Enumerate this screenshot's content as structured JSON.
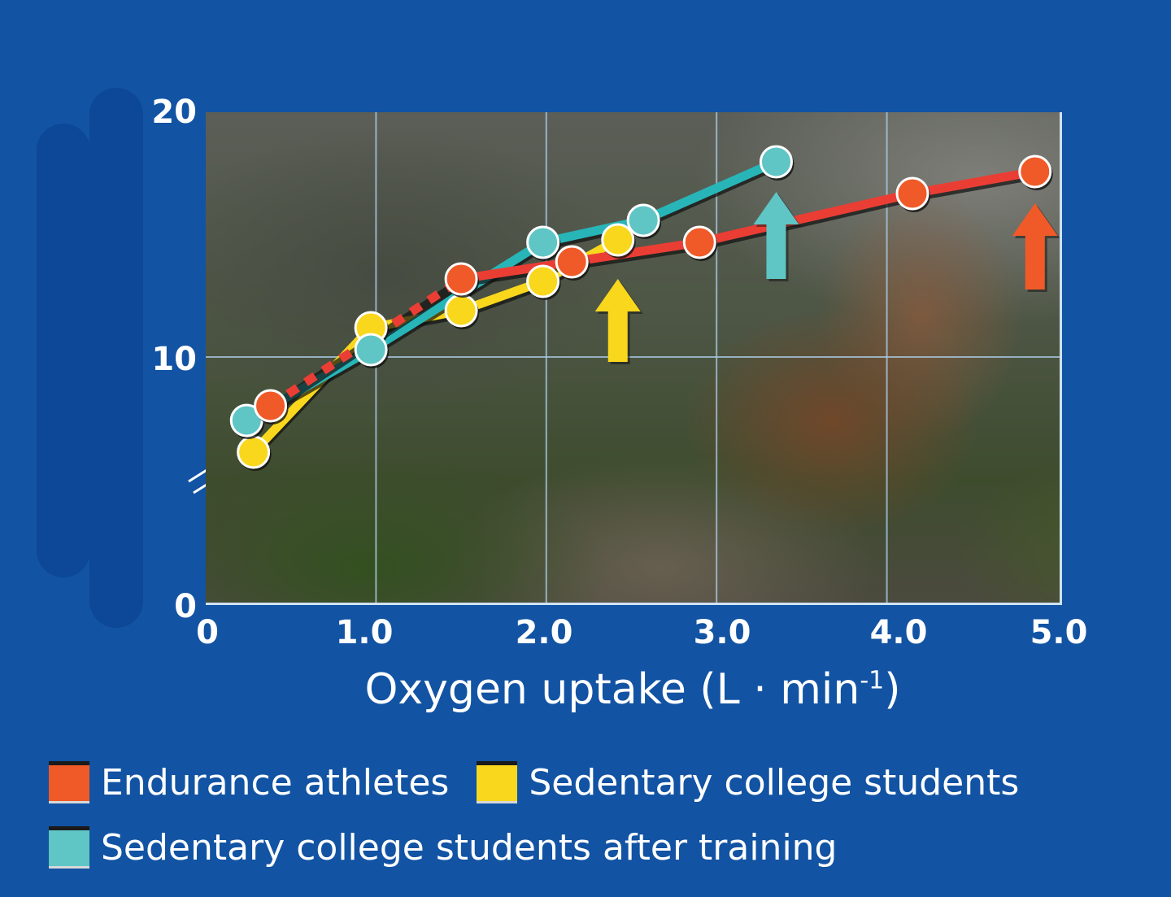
{
  "colors": {
    "background": "#1253a3",
    "endurance": "#f05a28",
    "endurance_line": "#ea3e34",
    "sedentary": "#f9d71c",
    "trained": "#5fc5c5",
    "trained_line": "#28b5b8",
    "grid": "#a9c8e2"
  },
  "axes": {
    "y_ticks": [
      "20",
      "10",
      "0"
    ],
    "x_ticks": [
      "0",
      "1.0",
      "2.0",
      "3.0",
      "4.0",
      "5.0"
    ],
    "x_label_main": "Oxygen uptake (L · min",
    "x_label_sup": "-1",
    "x_label_close": ")"
  },
  "legend": {
    "items": [
      {
        "label": "Endurance athletes",
        "color": "#f05a28"
      },
      {
        "label": "Sedentary college students",
        "color": "#f9d71c"
      },
      {
        "label": "Sedentary college students after training",
        "color": "#5fc5c5"
      }
    ]
  },
  "chart_data": {
    "type": "line",
    "title": "",
    "xlabel": "Oxygen uptake (L · min⁻¹)",
    "ylabel": "",
    "xlim": [
      0,
      5.0
    ],
    "ylim": [
      0,
      20
    ],
    "x_ticks": [
      0,
      1.0,
      2.0,
      3.0,
      4.0,
      5.0
    ],
    "y_ticks": [
      0,
      10,
      20
    ],
    "y_axis_break": true,
    "grid": true,
    "legend_position": "bottom",
    "series": [
      {
        "name": "Endurance athletes",
        "color": "#f05a28",
        "x": [
          0.38,
          1.5,
          2.15,
          2.9,
          4.15,
          4.87
        ],
        "y": [
          8.0,
          13.2,
          13.9,
          14.7,
          16.7,
          17.6
        ],
        "note": "first segment dashed; arrow marks max at ~4.87"
      },
      {
        "name": "Sedentary college students",
        "color": "#f9d71c",
        "x": [
          0.28,
          0.97,
          1.5,
          1.98,
          2.42
        ],
        "y": [
          6.1,
          11.2,
          11.9,
          13.1,
          14.8
        ],
        "note": "arrow marks max at ~2.42"
      },
      {
        "name": "Sedentary college students after training",
        "color": "#5fc5c5",
        "x": [
          0.24,
          0.97,
          1.98,
          2.57,
          3.35
        ],
        "y": [
          7.4,
          10.3,
          14.7,
          15.6,
          18.0
        ],
        "note": "arrow marks max at ~3.35"
      }
    ],
    "annotations": [
      {
        "type": "up-arrow",
        "color": "#f9d71c",
        "x": 2.42
      },
      {
        "type": "up-arrow",
        "color": "#5fc5c5",
        "x": 3.35
      },
      {
        "type": "up-arrow",
        "color": "#f05a28",
        "x": 4.87
      }
    ]
  }
}
